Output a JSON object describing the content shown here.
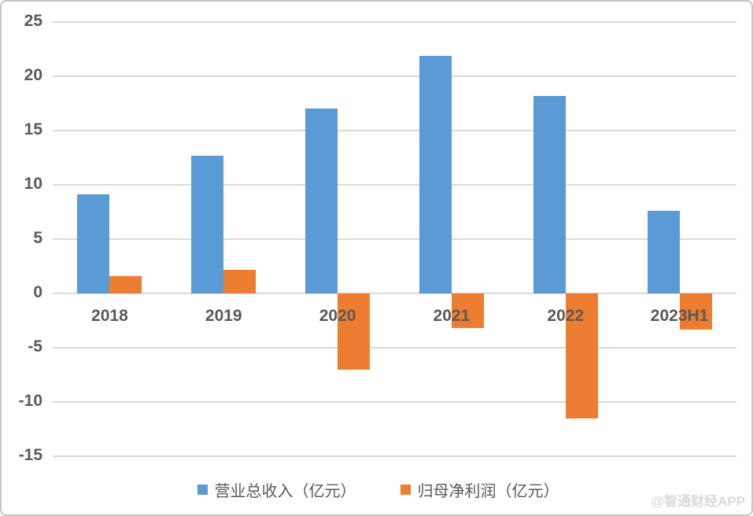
{
  "chart_data": {
    "type": "bar",
    "categories": [
      "2018",
      "2019",
      "2020",
      "2021",
      "2022",
      "2023H1"
    ],
    "series": [
      {
        "key": "revenue",
        "name": "营业总收入（亿元）",
        "color": "#5B9BD5",
        "values": [
          9.1,
          12.7,
          17.0,
          21.9,
          18.2,
          7.6
        ]
      },
      {
        "key": "net-profit",
        "name": "归母净利润（亿元）",
        "color": "#ED7D31",
        "values": [
          1.6,
          2.2,
          -7.0,
          -3.2,
          -11.5,
          -3.3
        ]
      }
    ],
    "title": "",
    "xlabel": "",
    "ylabel": "",
    "ylim": [
      -15,
      25
    ],
    "yticks": [
      25,
      20,
      15,
      10,
      5,
      0,
      -5,
      -10,
      -15
    ],
    "grid": true,
    "legend_position": "bottom"
  },
  "colors": {
    "grid": "#d9d9d9",
    "tick_text": "#595959",
    "frame_border": "#c7c7c7"
  },
  "watermark": "@智通财经APP"
}
